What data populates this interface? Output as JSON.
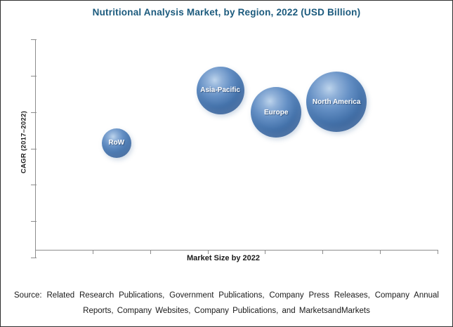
{
  "page": {
    "background": "#ffffff",
    "border_color": "#2f2f2f"
  },
  "chart_data": {
    "type": "scatter",
    "subtype": "bubble",
    "title": "Nutritional Analysis Market, by Region, 2022 (USD Billion)",
    "title_color": "#1b5a7d",
    "xlabel": "Market Size by 2022",
    "ylabel": "CAGR (2017–2022)",
    "axis_color": "#8c8c8c",
    "grid": false,
    "legend": false,
    "x_tick_labels": [],
    "y_tick_labels": [],
    "axes_note": "Axes show unlabeled tick marks only; no numeric scale is printed. x_rel and y_rel are fractions of the plot area measured from the bottom-left origin; radius_px is bubble radius in pixels (bubble size encodes 2022 market size in USD Billion).",
    "bubble_base_color": "#3f6ca6",
    "bubble_label_color": "#ffffff",
    "points": [
      {
        "label": "RoW",
        "x_rel": 0.202,
        "y_rel": 0.507,
        "radius_px": 21
      },
      {
        "label": "Asia-Pacific",
        "x_rel": 0.46,
        "y_rel": 0.757,
        "radius_px": 34
      },
      {
        "label": "Europe",
        "x_rel": 0.599,
        "y_rel": 0.653,
        "radius_px": 36
      },
      {
        "label": "North America",
        "x_rel": 0.749,
        "y_rel": 0.703,
        "radius_px": 43
      }
    ]
  },
  "source": {
    "line1": "Source:  Related Research Publications,  Government Publications,  Company Press Releases, Company Annual",
    "line2": "Reports,  Company Websites,  Company Publications,  and MarketsandMarkets"
  }
}
